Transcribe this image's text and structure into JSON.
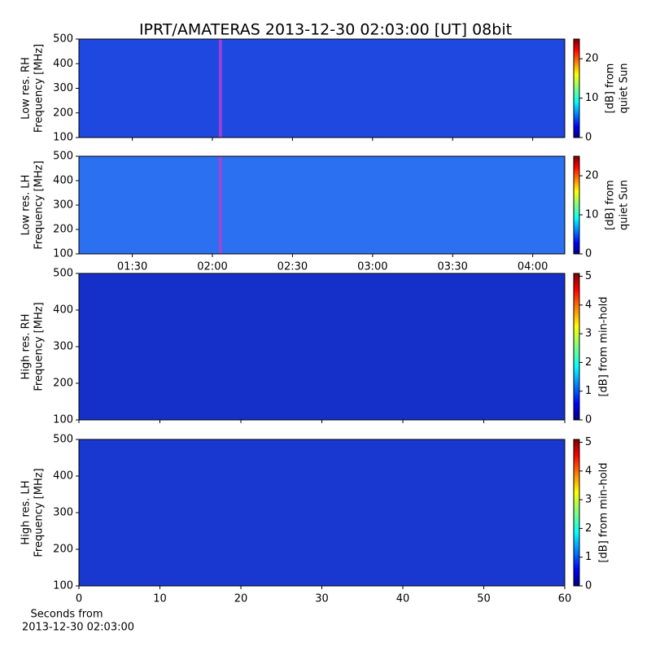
{
  "chart_data": [
    {
      "type": "spectrogram",
      "title": "IPRT/AMATERAS 2013-12-30 02:03:00 [UT]   08bit",
      "ylabel": [
        "Low res. RH",
        "Frequency [MHz]"
      ],
      "ylim": [
        100,
        500
      ],
      "yticks": [
        100,
        200,
        300,
        400,
        500
      ],
      "xlim": [
        70,
        252
      ],
      "xticks": [
        {
          "value": 90,
          "label": "01:30"
        },
        {
          "value": 120,
          "label": "02:00"
        },
        {
          "value": 150,
          "label": "02:30"
        },
        {
          "value": 180,
          "label": "03:00"
        },
        {
          "value": 210,
          "label": "03:30"
        },
        {
          "value": 240,
          "label": "04:00"
        }
      ],
      "show_xticklabels": false,
      "marker_x": 123,
      "marker_color": "#b040d0",
      "background": "#1e48e0",
      "colorbar_label": [
        "[dB] from",
        "quiet Sun"
      ],
      "clim": [
        0,
        25
      ],
      "cticks": [
        0,
        10,
        20
      ]
    },
    {
      "type": "spectrogram",
      "ylabel": [
        "Low res. LH",
        "Frequency [MHz]"
      ],
      "ylim": [
        100,
        500
      ],
      "yticks": [
        100,
        200,
        300,
        400,
        500
      ],
      "xlim": [
        70,
        252
      ],
      "xticks": [
        {
          "value": 90,
          "label": "01:30"
        },
        {
          "value": 120,
          "label": "02:00"
        },
        {
          "value": 150,
          "label": "02:30"
        },
        {
          "value": 180,
          "label": "03:00"
        },
        {
          "value": 210,
          "label": "03:30"
        },
        {
          "value": 240,
          "label": "04:00"
        }
      ],
      "show_xticklabels": true,
      "marker_x": 123,
      "marker_color": "#b040d0",
      "background": "#2a70f0",
      "colorbar_label": [
        "[dB] from",
        "quiet Sun"
      ],
      "clim": [
        0,
        25
      ],
      "cticks": [
        0,
        10,
        20
      ]
    },
    {
      "type": "spectrogram",
      "ylabel": [
        "High res. RH",
        "Frequency [MHz]"
      ],
      "ylim": [
        100,
        500
      ],
      "yticks": [
        100,
        200,
        300,
        400,
        500
      ],
      "xlim": [
        0,
        60
      ],
      "xticks": [
        0,
        10,
        20,
        30,
        40,
        50,
        60
      ],
      "show_xticklabels": false,
      "background": "#1530c8",
      "colorbar_label": [
        "[dB] from min-hold"
      ],
      "clim": [
        0,
        5.1
      ],
      "cticks": [
        0,
        1,
        2,
        3,
        4,
        5
      ]
    },
    {
      "type": "spectrogram",
      "ylabel": [
        "High res. LH",
        "Frequency [MHz]"
      ],
      "ylim": [
        100,
        500
      ],
      "yticks": [
        100,
        200,
        300,
        400,
        500
      ],
      "xlim": [
        0,
        60
      ],
      "xticks": [
        0,
        10,
        20,
        30,
        40,
        50,
        60
      ],
      "show_xticklabels": true,
      "background": "#1838d0",
      "xlabel": [
        "Seconds from",
        "2013-12-30 02:03:00"
      ],
      "colorbar_label": [
        "[dB] from min-hold"
      ],
      "clim": [
        0,
        5.1
      ],
      "cticks": [
        0,
        1,
        2,
        3,
        4,
        5
      ]
    }
  ]
}
